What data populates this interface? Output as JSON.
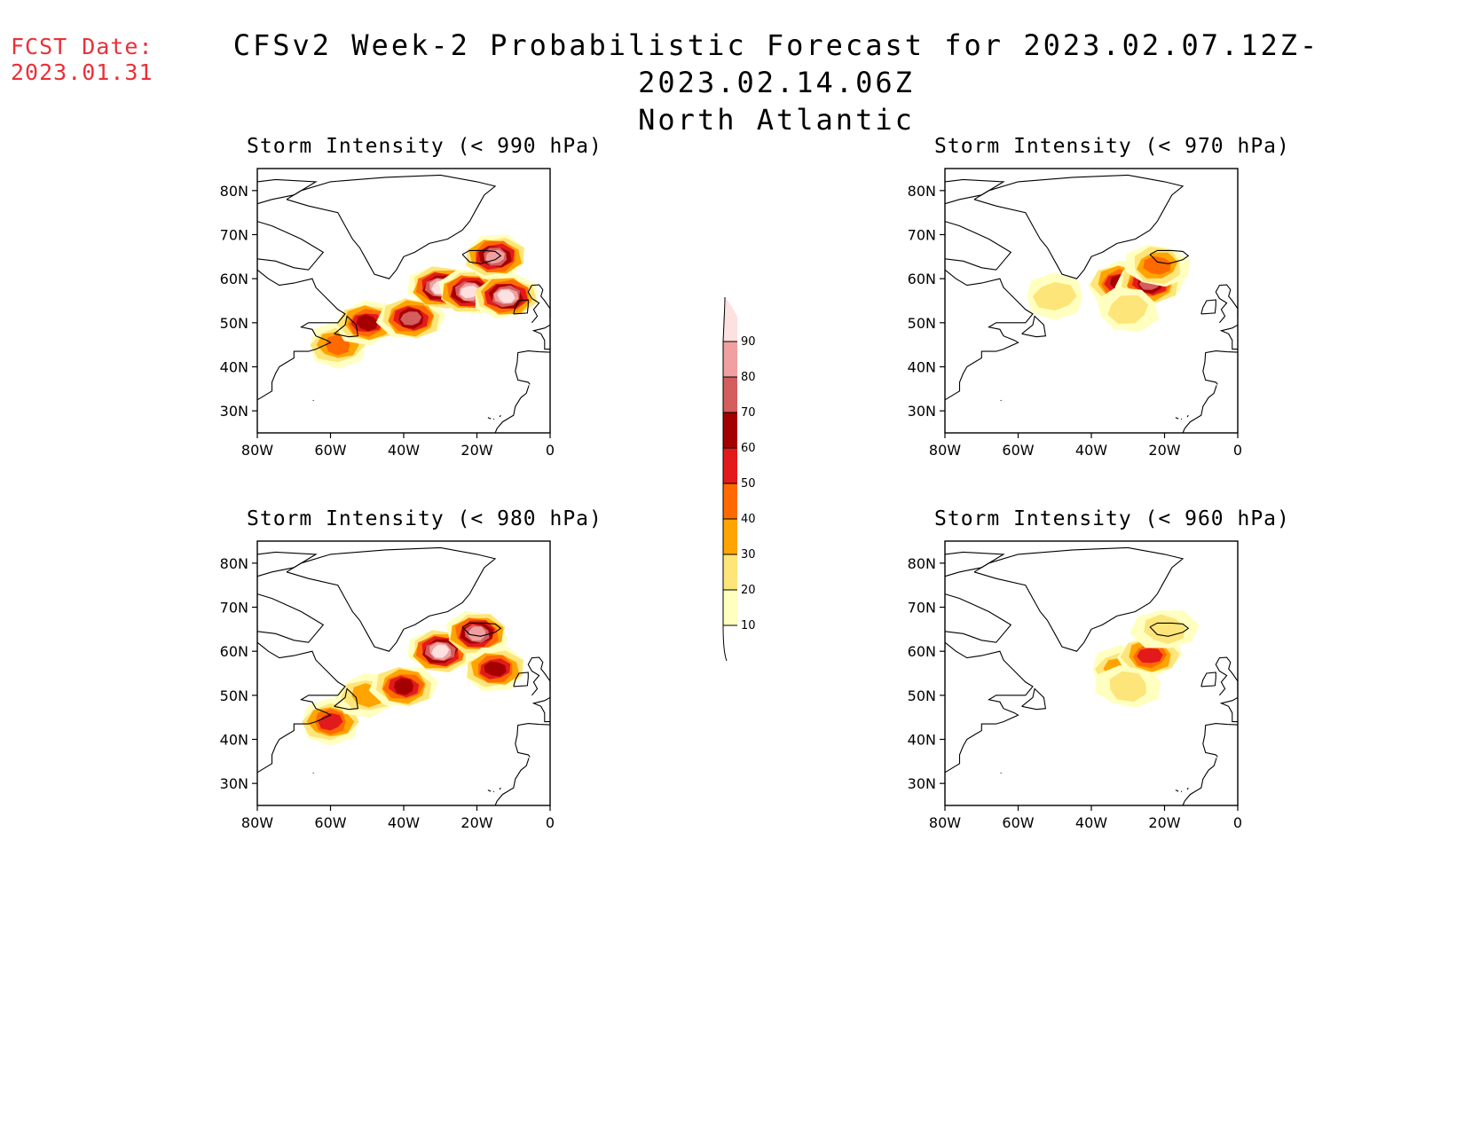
{
  "header": {
    "fcst_label": "FCST Date:",
    "fcst_date": "2023.01.31",
    "title": "CFSv2 Week-2 Probabilistic Forecast for 2023.02.07.12Z-2023.02.14.06Z",
    "subtitle": "North Atlantic"
  },
  "colors": {
    "levels": [
      "#ffffc0",
      "#fde57a",
      "#ffa400",
      "#ff6a00",
      "#e31a1c",
      "#a50000",
      "#d45d5d",
      "#f0a0a0",
      "#fde0e0"
    ],
    "boundary": "#ffffff"
  },
  "colorbar": {
    "labels": [
      "10",
      "20",
      "30",
      "40",
      "50",
      "60",
      "70",
      "80",
      "90"
    ]
  },
  "axes": {
    "lat_ticks": [
      "80N",
      "70N",
      "60N",
      "50N",
      "40N",
      "30N"
    ],
    "lon_ticks": [
      "80W",
      "60W",
      "40W",
      "20W",
      "0"
    ]
  },
  "panels": [
    {
      "title": "Storm Intensity (< 990 hPa)",
      "blobs": [
        {
          "lon": -58,
          "lat": 45,
          "level": 3
        },
        {
          "lon": -50,
          "lat": 50,
          "level": 5
        },
        {
          "lon": -38,
          "lat": 51,
          "level": 6
        },
        {
          "lon": -30,
          "lat": 58,
          "level": 8
        },
        {
          "lon": -22,
          "lat": 57,
          "level": 8
        },
        {
          "lon": -15,
          "lat": 65,
          "level": 7
        },
        {
          "lon": -12,
          "lat": 56,
          "level": 8
        }
      ]
    },
    {
      "title": "Storm Intensity (< 970 hPa)",
      "blobs": [
        {
          "lon": -50,
          "lat": 56,
          "level": 1
        },
        {
          "lon": -32,
          "lat": 59,
          "level": 5
        },
        {
          "lon": -24,
          "lat": 59,
          "level": 6
        },
        {
          "lon": -22,
          "lat": 63,
          "level": 3
        },
        {
          "lon": -30,
          "lat": 53,
          "level": 1
        }
      ]
    },
    {
      "title": "Storm Intensity (< 980 hPa)",
      "blobs": [
        {
          "lon": -60,
          "lat": 44,
          "level": 4
        },
        {
          "lon": -50,
          "lat": 50,
          "level": 2
        },
        {
          "lon": -40,
          "lat": 52,
          "level": 5
        },
        {
          "lon": -30,
          "lat": 60,
          "level": 8
        },
        {
          "lon": -20,
          "lat": 64,
          "level": 7
        },
        {
          "lon": -15,
          "lat": 56,
          "level": 5
        }
      ]
    },
    {
      "title": "Storm Intensity (< 960 hPa)",
      "blobs": [
        {
          "lon": -32,
          "lat": 56,
          "level": 2
        },
        {
          "lon": -24,
          "lat": 59,
          "level": 4
        },
        {
          "lon": -20,
          "lat": 65,
          "level": 1
        },
        {
          "lon": -30,
          "lat": 52,
          "level": 1
        }
      ]
    }
  ]
}
